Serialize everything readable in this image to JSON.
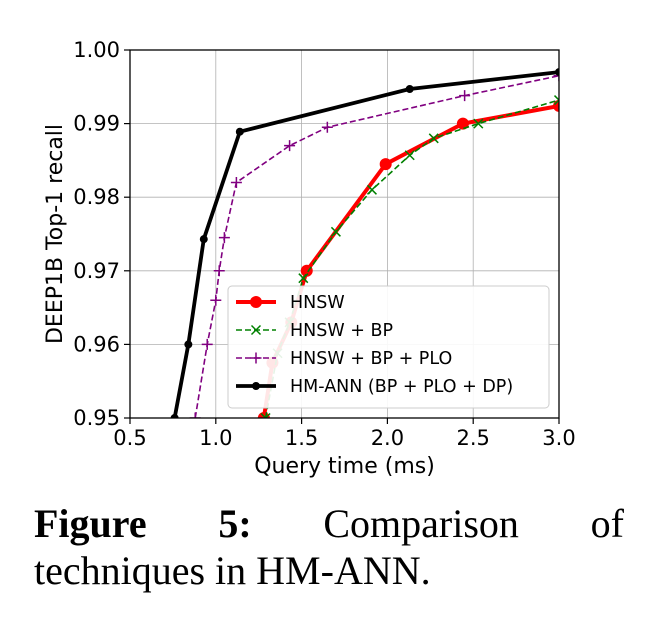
{
  "chart_data": {
    "type": "line",
    "xlabel": "Query time (ms)",
    "ylabel": "DEEP1B Top-1 recall",
    "xlim": [
      0.5,
      3.0
    ],
    "ylim": [
      0.95,
      1.0
    ],
    "xticks": [
      "0.5",
      "1.0",
      "1.5",
      "2.0",
      "2.5",
      "3.0"
    ],
    "yticks": [
      "0.95",
      "0.96",
      "0.97",
      "0.98",
      "0.99",
      "1.00"
    ],
    "grid": true,
    "legend_position": "lower-right",
    "series": [
      {
        "name": "HNSW",
        "color": "#ff0000",
        "marker": "circle",
        "line_style": "solid",
        "points": [
          [
            1.28,
            0.95
          ],
          [
            1.33,
            0.9575
          ],
          [
            1.44,
            0.963
          ],
          [
            1.53,
            0.97
          ],
          [
            1.99,
            0.9845
          ],
          [
            2.44,
            0.99
          ],
          [
            3.0,
            0.9924
          ]
        ]
      },
      {
        "name": "HNSW + BP",
        "color": "#008000",
        "marker": "x",
        "line_style": "dashed",
        "points": [
          [
            1.29,
            0.95
          ],
          [
            1.36,
            0.9588
          ],
          [
            1.43,
            0.963
          ],
          [
            1.51,
            0.969
          ],
          [
            1.7,
            0.9753
          ],
          [
            1.91,
            0.981
          ],
          [
            2.13,
            0.9857
          ],
          [
            2.27,
            0.988
          ],
          [
            2.53,
            0.99
          ],
          [
            3.0,
            0.9932
          ]
        ]
      },
      {
        "name": "HNSW + BP + PLO",
        "color": "#800080",
        "marker": "plus",
        "line_style": "dashed",
        "points": [
          [
            0.88,
            0.95
          ],
          [
            0.95,
            0.96
          ],
          [
            1.0,
            0.966
          ],
          [
            1.02,
            0.97
          ],
          [
            1.05,
            0.9745
          ],
          [
            1.12,
            0.982
          ],
          [
            1.43,
            0.987
          ],
          [
            1.65,
            0.9895
          ],
          [
            2.45,
            0.9938
          ],
          [
            3.0,
            0.9965
          ]
        ]
      },
      {
        "name": "HM-ANN (BP + PLO + DP)",
        "color": "#000000",
        "marker": "dot",
        "line_style": "solid",
        "points": [
          [
            0.76,
            0.95
          ],
          [
            0.84,
            0.96
          ],
          [
            0.93,
            0.9743
          ],
          [
            1.14,
            0.9889
          ],
          [
            2.13,
            0.9947
          ],
          [
            3.0,
            0.997
          ]
        ]
      }
    ]
  },
  "caption": {
    "label": "Figure",
    "number": "5:",
    "word1": "Comparison",
    "word2": "of",
    "line2": "techniques in HM-ANN."
  }
}
